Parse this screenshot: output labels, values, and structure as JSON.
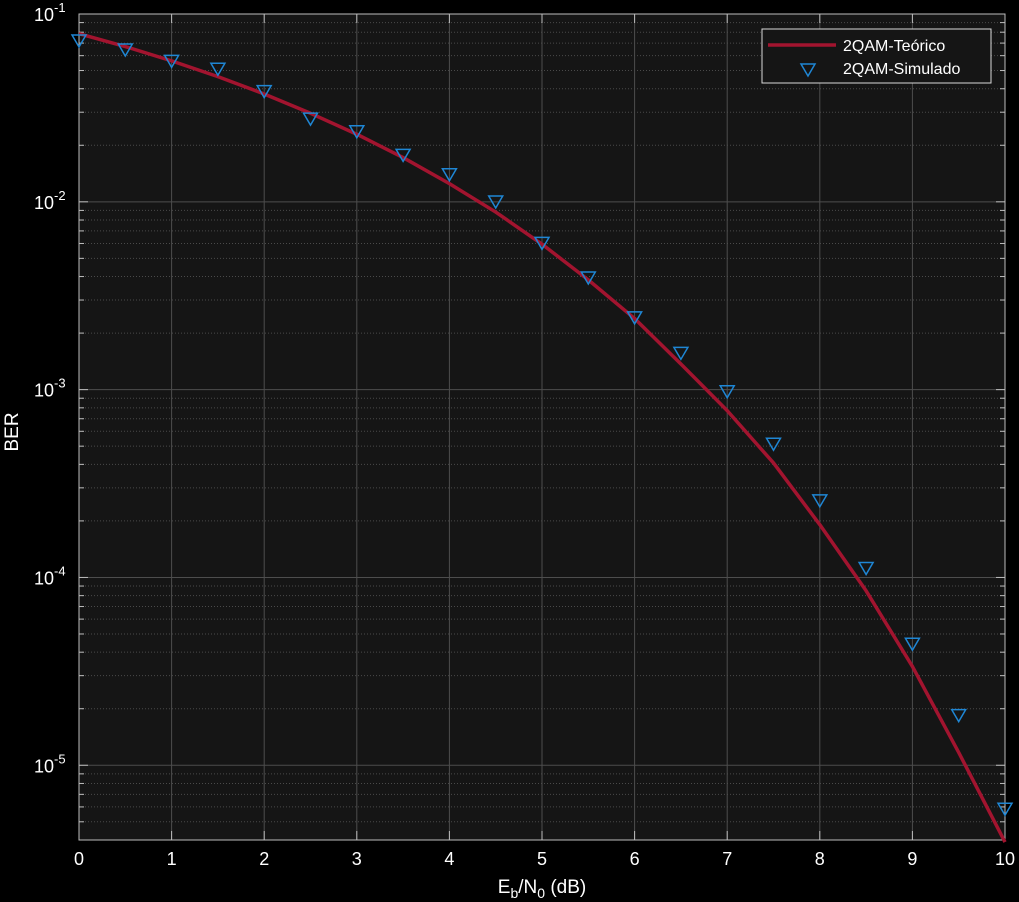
{
  "chart_data": {
    "type": "line",
    "xlabel": {
      "E": "E",
      "b": "b",
      "N": "/N",
      "zero": "0",
      "unit": " (dB)"
    },
    "ylabel": "BER",
    "xlim": [
      0,
      10
    ],
    "ylim": [
      4e-06,
      0.1
    ],
    "yscale": "log",
    "grid": true,
    "minor_grid": true,
    "legend_position": "top-right",
    "x_ticks": [
      "0",
      "1",
      "2",
      "3",
      "4",
      "5",
      "6",
      "7",
      "8",
      "9",
      "10"
    ],
    "y_ticks": [
      {
        "base": "10",
        "exp": "-1",
        "value": 0.1
      },
      {
        "base": "10",
        "exp": "-2",
        "value": 0.01
      },
      {
        "base": "10",
        "exp": "-3",
        "value": 0.001
      },
      {
        "base": "10",
        "exp": "-4",
        "value": 0.0001
      },
      {
        "base": "10",
        "exp": "-5",
        "value": 1e-05
      }
    ],
    "series": [
      {
        "name": "2QAM-Teórico",
        "kind": "line",
        "color": "#a2142f",
        "x": [
          0,
          0.5,
          1,
          1.5,
          2,
          2.5,
          3,
          3.5,
          4,
          4.5,
          5,
          5.5,
          6,
          6.5,
          7,
          7.5,
          8,
          8.5,
          9,
          9.5,
          10
        ],
        "y": [
          0.0786,
          0.0671,
          0.0563,
          0.0464,
          0.0375,
          0.0296,
          0.0229,
          0.0172,
          0.0125,
          0.00882,
          0.00595,
          0.00384,
          0.00239,
          0.00137,
          0.000773,
          0.000407,
          0.000191,
          8.49e-05,
          3.36e-05,
          1.17e-05,
          3.9e-06
        ]
      },
      {
        "name": "2QAM-Simulado",
        "kind": "marker",
        "marker": "triangle-down",
        "color": "#0072bd",
        "x": [
          0,
          0.5,
          1,
          1.5,
          2,
          2.5,
          3,
          3.5,
          4,
          4.5,
          5,
          5.5,
          6,
          6.5,
          7,
          7.5,
          8,
          8.5,
          9,
          9.5,
          10
        ],
        "y": [
          0.0727,
          0.0651,
          0.0566,
          0.0514,
          0.0391,
          0.0279,
          0.0239,
          0.0179,
          0.0141,
          0.0101,
          0.00608,
          0.00398,
          0.00244,
          0.00158,
          0.000986,
          0.000518,
          0.000259,
          0.000113,
          4.46e-05,
          1.86e-05,
          5.9e-06
        ]
      }
    ]
  }
}
